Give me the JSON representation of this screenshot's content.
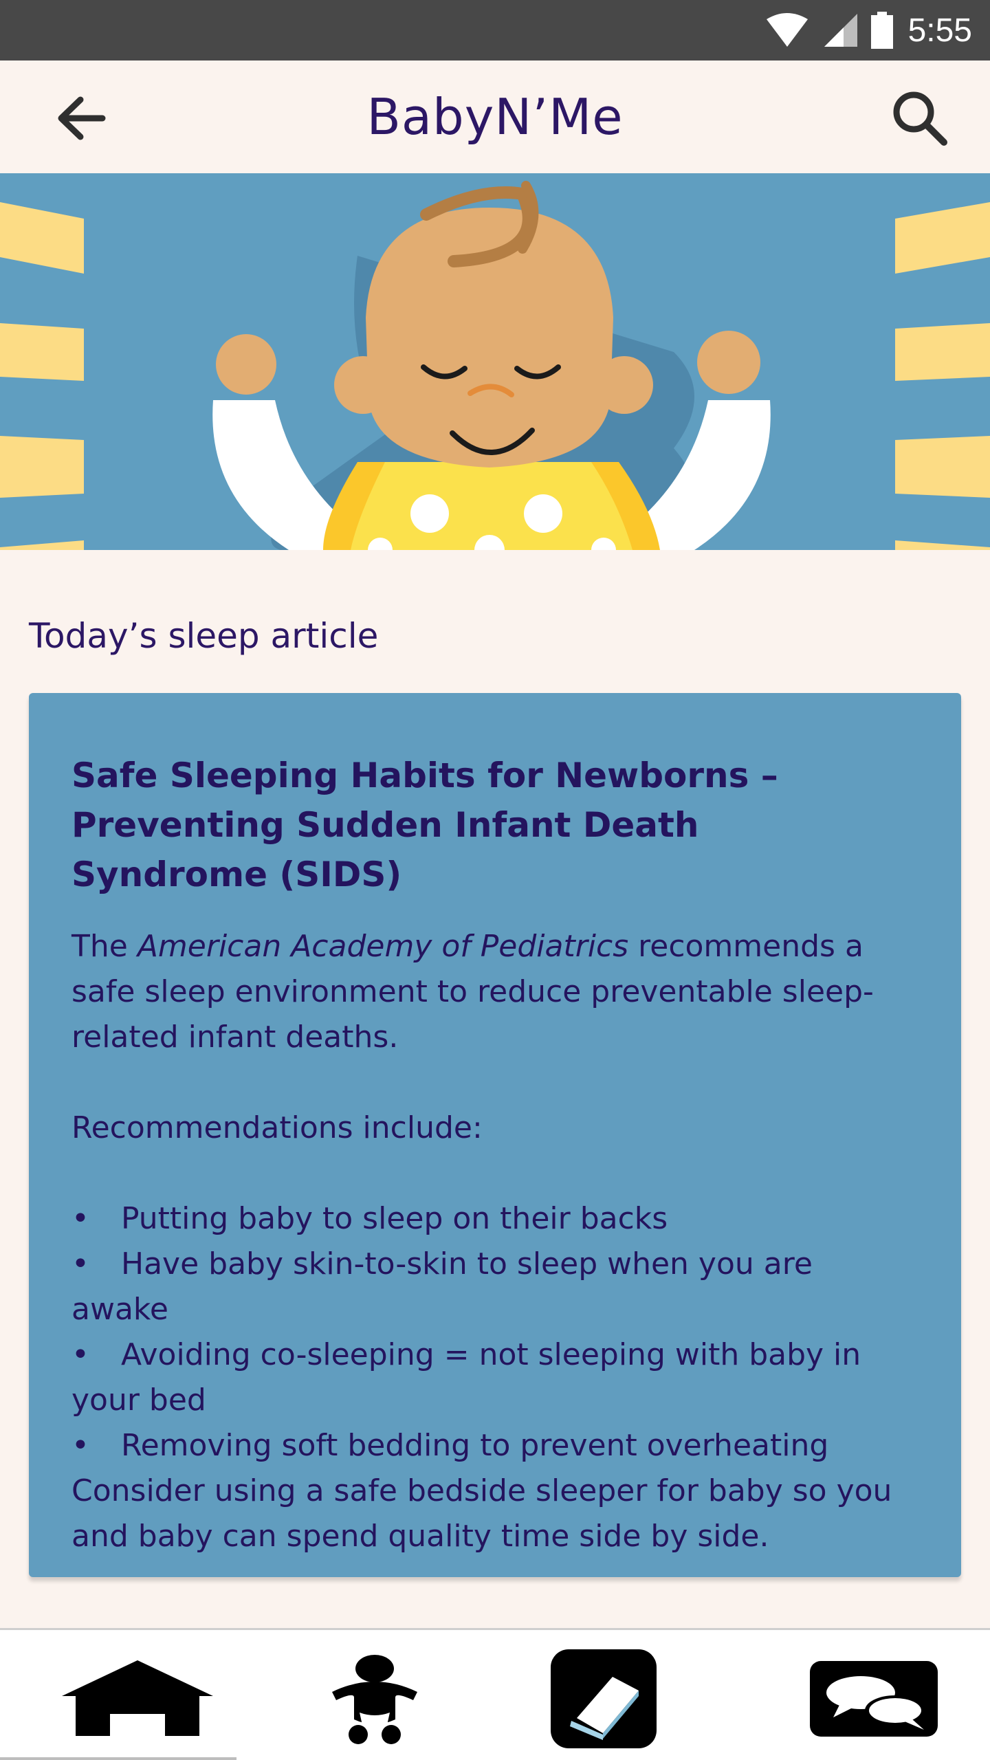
{
  "status_bar": {
    "time": "5:55",
    "icons": [
      "wifi-icon",
      "cell-signal-icon",
      "battery-icon"
    ]
  },
  "app_bar": {
    "title": "BabyN’Me",
    "back_icon": "arrow-left-icon",
    "search_icon": "search-icon"
  },
  "hero": {
    "illustration": "sleeping-baby-illustration"
  },
  "section": {
    "heading": "Today’s sleep article"
  },
  "article": {
    "title": "Safe Sleeping Habits for Newborns – Preventing Sudden Infant Death Syndrome (SIDS)",
    "intro_prefix": "The ",
    "intro_emphasis": "American Academy of Pediatrics",
    "intro_suffix": " recommends a safe sleep environment to reduce preventable sleep-related infant deaths.",
    "recommendations_heading": "Recommendations include:",
    "bullet": "•",
    "recommendations": [
      "Putting baby to sleep on their backs",
      "Have baby skin-to-skin to sleep when you are awake",
      "Avoiding co-sleeping = not sleeping with baby in your bed",
      "Removing soft bedding to prevent overheating"
    ],
    "closing": "Consider using a safe bedside sleeper for baby so you and baby can spend quality time side by side."
  },
  "bottom_nav": {
    "items": [
      {
        "icon": "home-icon"
      },
      {
        "icon": "baby-icon"
      },
      {
        "icon": "book-icon"
      },
      {
        "icon": "chat-bubbles-icon"
      }
    ]
  },
  "colors": {
    "background": "#fbf3ee",
    "status_bar": "#484848",
    "primary_text": "#2c1765",
    "card": "#619dbf",
    "hero_sky": "#609ec0",
    "ray_yellow": "#fcdc85",
    "baby_skin": "#e2ad72",
    "onesie_yellow": "#fbe14c"
  }
}
